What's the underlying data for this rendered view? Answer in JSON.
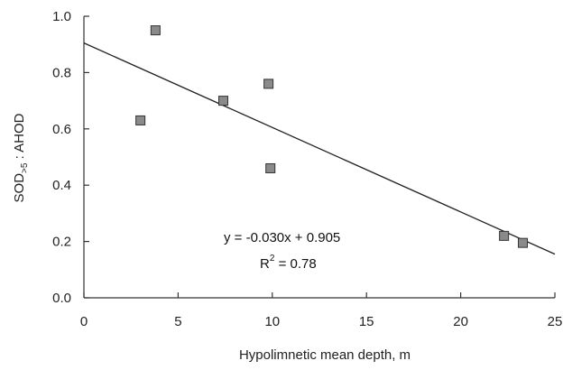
{
  "chart_data": {
    "type": "scatter",
    "xlabel": "Hypolimnetic mean depth, m",
    "ylabel": {
      "main": "SOD",
      "subscript": ">5",
      "rest": " : AHOD"
    },
    "xlim": [
      0,
      25
    ],
    "ylim": [
      0,
      1.0
    ],
    "x_ticks": [
      "0",
      "5",
      "10",
      "15",
      "20",
      "25"
    ],
    "x_tick_values": [
      0,
      5,
      10,
      15,
      20,
      25
    ],
    "y_ticks": [
      "0.0",
      "0.2",
      "0.4",
      "0.6",
      "0.8",
      "1.0"
    ],
    "y_tick_values": [
      0,
      0.2,
      0.4,
      0.6,
      0.8,
      1.0
    ],
    "grid": false,
    "points": [
      {
        "x": 3.0,
        "y": 0.63
      },
      {
        "x": 3.8,
        "y": 0.95
      },
      {
        "x": 7.4,
        "y": 0.7
      },
      {
        "x": 9.8,
        "y": 0.76
      },
      {
        "x": 9.9,
        "y": 0.46
      },
      {
        "x": 22.3,
        "y": 0.22
      },
      {
        "x": 23.3,
        "y": 0.195
      }
    ],
    "regression": {
      "slope": -0.03,
      "intercept": 0.905,
      "x_range": [
        0,
        25
      ]
    },
    "annotation": {
      "equation": "y = -0.030x + 0.905",
      "r2_label": "R",
      "r2_sup": "2",
      "r2_value": " = 0.78"
    },
    "colors": {
      "marker_fill": "#8a8a8a",
      "marker_stroke": "#333333",
      "line": "#222222",
      "axis": "#333333"
    }
  }
}
